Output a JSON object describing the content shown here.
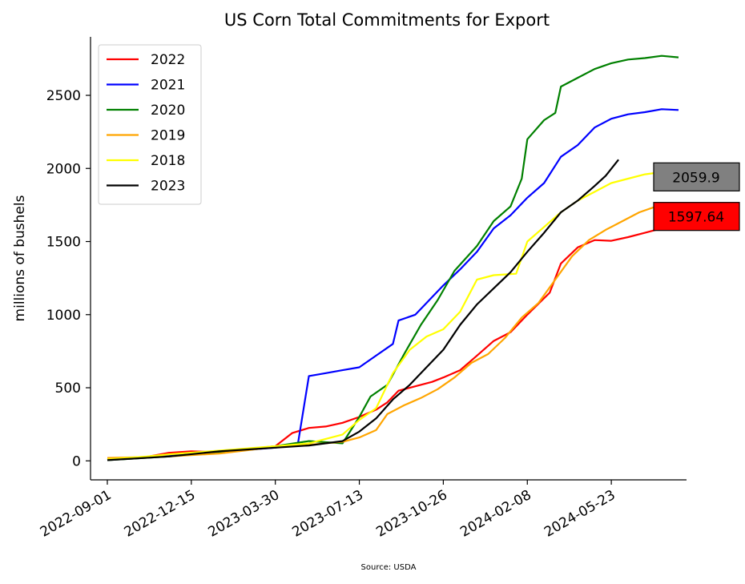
{
  "chart_data": {
    "type": "line",
    "title": "US Corn Total Commitments for Export",
    "xlabel": "",
    "ylabel": "millions of bushels",
    "source": "Source: USDA",
    "x_ticks": [
      "2022-09-01",
      "2022-12-15",
      "2023-03-30",
      "2023-07-13",
      "2023-10-26",
      "2024-02-08",
      "2024-05-23"
    ],
    "x_range": [
      "2022-08-11",
      "2024-08-25"
    ],
    "y_ticks": [
      0,
      500,
      1000,
      1500,
      2000,
      2500
    ],
    "ylim": [
      -130,
      2900
    ],
    "grid": false,
    "legend_position": "top-left",
    "series": [
      {
        "name": "2022",
        "color": "#ff0000",
        "points": [
          [
            "2022-09-01",
            10
          ],
          [
            "2022-10-13",
            20
          ],
          [
            "2022-11-17",
            55
          ],
          [
            "2022-12-15",
            65
          ],
          [
            "2023-01-19",
            60
          ],
          [
            "2023-02-23",
            80
          ],
          [
            "2023-03-30",
            100
          ],
          [
            "2023-04-20",
            190
          ],
          [
            "2023-05-11",
            225
          ],
          [
            "2023-06-01",
            235
          ],
          [
            "2023-06-22",
            260
          ],
          [
            "2023-07-13",
            300
          ],
          [
            "2023-08-03",
            350
          ],
          [
            "2023-08-17",
            400
          ],
          [
            "2023-08-31",
            480
          ],
          [
            "2023-09-21",
            510
          ],
          [
            "2023-10-12",
            540
          ],
          [
            "2023-10-26",
            570
          ],
          [
            "2023-11-16",
            620
          ],
          [
            "2023-12-07",
            720
          ],
          [
            "2023-12-28",
            820
          ],
          [
            "2024-01-18",
            880
          ],
          [
            "2024-02-08",
            1000
          ],
          [
            "2024-03-07",
            1150
          ],
          [
            "2024-03-21",
            1350
          ],
          [
            "2024-04-11",
            1460
          ],
          [
            "2024-05-02",
            1510
          ],
          [
            "2024-05-23",
            1505
          ],
          [
            "2024-06-13",
            1530
          ],
          [
            "2024-07-04",
            1560
          ],
          [
            "2024-07-25",
            1590
          ],
          [
            "2024-08-15",
            1597.64
          ]
        ]
      },
      {
        "name": "2021",
        "color": "#0000ff",
        "points": [
          [
            "2022-09-01",
            10
          ],
          [
            "2022-11-17",
            35
          ],
          [
            "2023-01-19",
            60
          ],
          [
            "2023-03-30",
            90
          ],
          [
            "2023-04-27",
            110
          ],
          [
            "2023-05-11",
            580
          ],
          [
            "2023-06-01",
            600
          ],
          [
            "2023-06-22",
            620
          ],
          [
            "2023-07-13",
            640
          ],
          [
            "2023-08-03",
            720
          ],
          [
            "2023-08-24",
            800
          ],
          [
            "2023-08-31",
            960
          ],
          [
            "2023-09-21",
            1000
          ],
          [
            "2023-10-12",
            1120
          ],
          [
            "2023-10-26",
            1200
          ],
          [
            "2023-11-16",
            1310
          ],
          [
            "2023-12-07",
            1430
          ],
          [
            "2023-12-28",
            1590
          ],
          [
            "2024-01-18",
            1680
          ],
          [
            "2024-02-08",
            1800
          ],
          [
            "2024-02-29",
            1900
          ],
          [
            "2024-03-21",
            2080
          ],
          [
            "2024-04-11",
            2160
          ],
          [
            "2024-05-02",
            2280
          ],
          [
            "2024-05-23",
            2340
          ],
          [
            "2024-06-13",
            2370
          ],
          [
            "2024-07-04",
            2385
          ],
          [
            "2024-07-25",
            2405
          ],
          [
            "2024-08-15",
            2400
          ]
        ]
      },
      {
        "name": "2020",
        "color": "#008000",
        "points": [
          [
            "2022-09-01",
            5
          ],
          [
            "2022-11-17",
            30
          ],
          [
            "2023-01-19",
            60
          ],
          [
            "2023-03-30",
            100
          ],
          [
            "2023-05-11",
            135
          ],
          [
            "2023-06-22",
            120
          ],
          [
            "2023-07-13",
            300
          ],
          [
            "2023-07-27",
            440
          ],
          [
            "2023-08-17",
            520
          ],
          [
            "2023-09-07",
            730
          ],
          [
            "2023-09-28",
            930
          ],
          [
            "2023-10-19",
            1100
          ],
          [
            "2023-11-09",
            1300
          ],
          [
            "2023-12-07",
            1470
          ],
          [
            "2023-12-28",
            1640
          ],
          [
            "2024-01-18",
            1740
          ],
          [
            "2024-02-01",
            1930
          ],
          [
            "2024-02-08",
            2200
          ],
          [
            "2024-02-29",
            2330
          ],
          [
            "2024-03-14",
            2380
          ],
          [
            "2024-03-21",
            2560
          ],
          [
            "2024-04-11",
            2620
          ],
          [
            "2024-05-02",
            2680
          ],
          [
            "2024-05-23",
            2720
          ],
          [
            "2024-06-13",
            2745
          ],
          [
            "2024-07-04",
            2755
          ],
          [
            "2024-07-25",
            2770
          ],
          [
            "2024-08-15",
            2760
          ]
        ]
      },
      {
        "name": "2019",
        "color": "#ffa500",
        "points": [
          [
            "2022-09-01",
            20
          ],
          [
            "2022-11-17",
            30
          ],
          [
            "2023-01-19",
            50
          ],
          [
            "2023-03-30",
            95
          ],
          [
            "2023-05-11",
            110
          ],
          [
            "2023-06-22",
            130
          ],
          [
            "2023-07-13",
            160
          ],
          [
            "2023-08-03",
            210
          ],
          [
            "2023-08-17",
            320
          ],
          [
            "2023-09-07",
            380
          ],
          [
            "2023-09-28",
            430
          ],
          [
            "2023-10-19",
            490
          ],
          [
            "2023-11-09",
            570
          ],
          [
            "2023-11-30",
            670
          ],
          [
            "2023-12-21",
            730
          ],
          [
            "2024-01-11",
            840
          ],
          [
            "2024-02-01",
            980
          ],
          [
            "2024-02-22",
            1080
          ],
          [
            "2024-03-14",
            1240
          ],
          [
            "2024-04-04",
            1400
          ],
          [
            "2024-04-25",
            1510
          ],
          [
            "2024-05-16",
            1580
          ],
          [
            "2024-06-06",
            1640
          ],
          [
            "2024-06-27",
            1700
          ],
          [
            "2024-07-18",
            1740
          ],
          [
            "2024-08-15",
            1755
          ]
        ]
      },
      {
        "name": "2018",
        "color": "#ffff00",
        "points": [
          [
            "2022-09-01",
            10
          ],
          [
            "2022-10-20",
            30
          ],
          [
            "2022-11-17",
            45
          ],
          [
            "2023-01-19",
            70
          ],
          [
            "2023-03-30",
            100
          ],
          [
            "2023-05-11",
            120
          ],
          [
            "2023-06-22",
            180
          ],
          [
            "2023-07-13",
            280
          ],
          [
            "2023-08-03",
            360
          ],
          [
            "2023-08-24",
            600
          ],
          [
            "2023-09-14",
            760
          ],
          [
            "2023-10-05",
            850
          ],
          [
            "2023-10-26",
            900
          ],
          [
            "2023-11-16",
            1020
          ],
          [
            "2023-12-07",
            1240
          ],
          [
            "2023-12-28",
            1270
          ],
          [
            "2024-01-25",
            1280
          ],
          [
            "2024-02-08",
            1500
          ],
          [
            "2024-02-29",
            1600
          ],
          [
            "2024-03-21",
            1700
          ],
          [
            "2024-04-11",
            1780
          ],
          [
            "2024-05-02",
            1840
          ],
          [
            "2024-05-23",
            1900
          ],
          [
            "2024-06-13",
            1930
          ],
          [
            "2024-07-04",
            1960
          ],
          [
            "2024-07-25",
            1975
          ],
          [
            "2024-08-15",
            1975
          ]
        ]
      },
      {
        "name": "2023",
        "color": "#000000",
        "points": [
          [
            "2022-09-01",
            5
          ],
          [
            "2022-11-17",
            30
          ],
          [
            "2023-01-19",
            65
          ],
          [
            "2023-03-30",
            90
          ],
          [
            "2023-05-11",
            105
          ],
          [
            "2023-06-22",
            135
          ],
          [
            "2023-07-13",
            200
          ],
          [
            "2023-08-03",
            290
          ],
          [
            "2023-08-24",
            420
          ],
          [
            "2023-09-14",
            520
          ],
          [
            "2023-10-05",
            640
          ],
          [
            "2023-10-26",
            760
          ],
          [
            "2023-11-16",
            930
          ],
          [
            "2023-12-07",
            1070
          ],
          [
            "2023-12-28",
            1180
          ],
          [
            "2024-01-18",
            1290
          ],
          [
            "2024-02-08",
            1430
          ],
          [
            "2024-02-29",
            1560
          ],
          [
            "2024-03-21",
            1700
          ],
          [
            "2024-04-11",
            1780
          ],
          [
            "2024-05-02",
            1880
          ],
          [
            "2024-05-16",
            1950
          ],
          [
            "2024-06-01",
            2059.9
          ]
        ]
      }
    ],
    "callouts": [
      {
        "series": "2023",
        "text": "2059.9",
        "value": 2059.9,
        "fill": "#808080"
      },
      {
        "series": "2022",
        "text": "1597.64",
        "value": 1597.64,
        "fill": "#ff0000"
      }
    ]
  }
}
